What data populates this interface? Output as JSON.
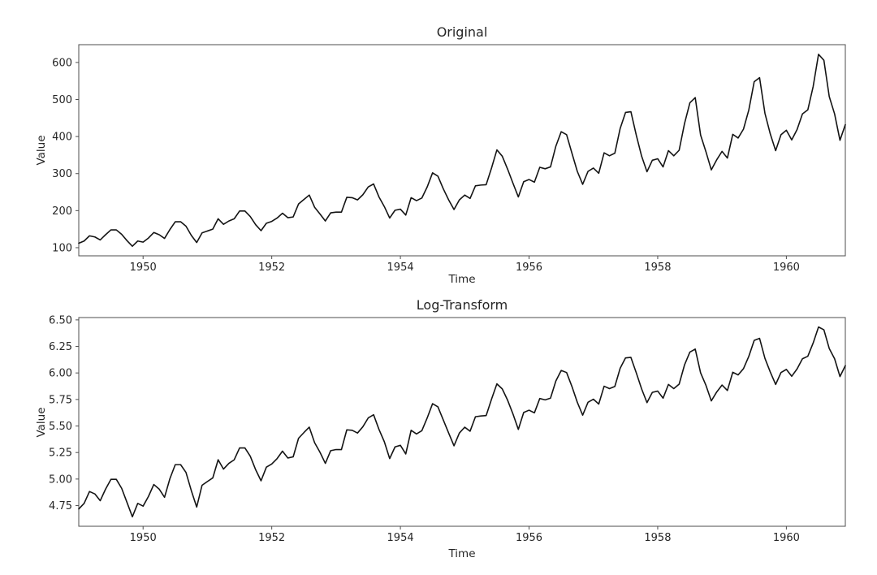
{
  "figure": {
    "background": "#ffffff",
    "text_color": "#262626",
    "axis_color": "#4d4d4d",
    "line_color": "#141414"
  },
  "chart_data": [
    {
      "type": "line",
      "title": "Original",
      "xlabel": "Time",
      "ylabel": "Value",
      "grid": false,
      "legend": null,
      "x_start": 1949.0,
      "x_step": 0.0833333333,
      "xlim": [
        1949.0,
        1960.9167
      ],
      "ylim": [
        78,
        648
      ],
      "x_tick_values": [
        1950,
        1952,
        1954,
        1956,
        1958,
        1960
      ],
      "x_tick_labels": [
        "1950",
        "1952",
        "1954",
        "1956",
        "1958",
        "1960"
      ],
      "y_tick_values": [
        100,
        200,
        300,
        400,
        500,
        600
      ],
      "y_tick_labels": [
        "100",
        "200",
        "300",
        "400",
        "500",
        "600"
      ],
      "values": [
        112,
        118,
        132,
        129,
        121,
        135,
        148,
        148,
        136,
        119,
        104,
        118,
        115,
        126,
        141,
        135,
        125,
        149,
        170,
        170,
        158,
        133,
        114,
        140,
        145,
        150,
        178,
        163,
        172,
        178,
        199,
        199,
        184,
        162,
        146,
        166,
        171,
        180,
        193,
        181,
        183,
        218,
        230,
        242,
        209,
        191,
        172,
        194,
        196,
        196,
        236,
        235,
        229,
        243,
        264,
        272,
        237,
        211,
        180,
        201,
        204,
        188,
        235,
        227,
        234,
        264,
        302,
        293,
        259,
        229,
        203,
        229,
        242,
        233,
        267,
        269,
        270,
        315,
        364,
        347,
        312,
        274,
        237,
        278,
        284,
        277,
        317,
        313,
        318,
        374,
        413,
        405,
        355,
        306,
        271,
        306,
        315,
        301,
        356,
        348,
        355,
        422,
        465,
        467,
        404,
        347,
        305,
        336,
        340,
        318,
        362,
        348,
        363,
        435,
        491,
        505,
        404,
        359,
        310,
        337,
        360,
        342,
        406,
        396,
        420,
        472,
        548,
        559,
        463,
        407,
        362,
        405,
        417,
        391,
        419,
        461,
        472,
        535,
        622,
        606,
        508,
        461,
        390,
        432
      ]
    },
    {
      "type": "line",
      "title": "Log-Transform",
      "xlabel": "Time",
      "ylabel": "Value",
      "grid": false,
      "legend": null,
      "x_start": 1949.0,
      "x_step": 0.0833333333,
      "xlim": [
        1949.0,
        1960.9167
      ],
      "ylim": [
        4.555,
        6.522
      ],
      "x_tick_values": [
        1950,
        1952,
        1954,
        1956,
        1958,
        1960
      ],
      "x_tick_labels": [
        "1950",
        "1952",
        "1954",
        "1956",
        "1958",
        "1960"
      ],
      "y_tick_values": [
        4.75,
        5.0,
        5.25,
        5.5,
        5.75,
        6.0,
        6.25,
        6.5
      ],
      "y_tick_labels": [
        "4.75",
        "5.00",
        "5.25",
        "5.50",
        "5.75",
        "6.00",
        "6.25",
        "6.50"
      ],
      "values": [
        4.7185,
        4.7707,
        4.8828,
        4.8598,
        4.7958,
        4.9053,
        4.9972,
        4.9972,
        4.9127,
        4.7791,
        4.6444,
        4.7707,
        4.7449,
        4.8363,
        4.9488,
        4.9053,
        4.8283,
        5.0039,
        5.1358,
        5.1358,
        5.0626,
        4.8903,
        4.7362,
        4.9416,
        4.9767,
        5.0106,
        5.1818,
        5.0938,
        5.1475,
        5.1818,
        5.2933,
        5.2933,
        5.2149,
        5.0876,
        4.9836,
        5.112,
        5.1417,
        5.193,
        5.2627,
        5.1985,
        5.2095,
        5.3845,
        5.4381,
        5.4889,
        5.3423,
        5.2523,
        5.1475,
        5.2679,
        5.2781,
        5.2781,
        5.4638,
        5.4596,
        5.4337,
        5.4931,
        5.5759,
        5.6058,
        5.4681,
        5.3519,
        5.193,
        5.3033,
        5.3181,
        5.2364,
        5.4596,
        5.425,
        5.4553,
        5.5759,
        5.7104,
        5.6802,
        5.5568,
        5.4337,
        5.3132,
        5.4337,
        5.4889,
        5.451,
        5.5872,
        5.5947,
        5.5984,
        5.7526,
        5.8972,
        5.8493,
        5.743,
        5.6131,
        5.4681,
        5.6276,
        5.649,
        5.624,
        5.7589,
        5.7462,
        5.7621,
        5.9243,
        6.0234,
        6.0039,
        5.8721,
        5.7236,
        5.6021,
        5.7236,
        5.7526,
        5.7071,
        5.8749,
        5.8522,
        5.8721,
        6.045,
        6.142,
        6.1463,
        6.0014,
        5.8493,
        5.7203,
        5.8171,
        5.8289,
        5.7621,
        5.8916,
        5.8522,
        5.8944,
        6.0753,
        6.1964,
        6.2246,
        6.0014,
        5.8833,
        5.7366,
        5.8201,
        5.8861,
        5.8348,
        6.0064,
        5.9814,
        6.0403,
        6.157,
        6.3063,
        6.3261,
        6.1377,
        6.0088,
        5.8916,
        6.0039,
        6.0331,
        5.9687,
        6.0379,
        6.1334,
        6.157,
        6.2823,
        6.4329,
        6.4069,
        6.2305,
        6.1334,
        5.9661,
        6.0684
      ]
    }
  ]
}
